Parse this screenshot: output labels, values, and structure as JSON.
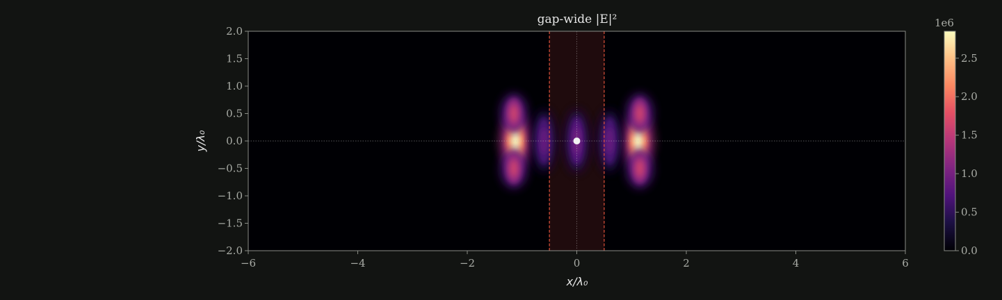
{
  "chart_data": {
    "type": "heatmap",
    "title": "gap-wide |E|²",
    "xlabel": "x/λ₀",
    "ylabel": "y/λ₀",
    "xlim": [
      -6,
      6
    ],
    "ylim": [
      -2,
      2
    ],
    "x_ticks": [
      {
        "value": -6,
        "label": "−6"
      },
      {
        "value": -4,
        "label": "−4"
      },
      {
        "value": -2,
        "label": "−2"
      },
      {
        "value": 0,
        "label": "0"
      },
      {
        "value": 2,
        "label": "2"
      },
      {
        "value": 4,
        "label": "4"
      },
      {
        "value": 6,
        "label": "6"
      }
    ],
    "y_ticks": [
      {
        "value": 2.0,
        "label": "2.0"
      },
      {
        "value": 1.5,
        "label": "1.5"
      },
      {
        "value": 1.0,
        "label": "1.0"
      },
      {
        "value": 0.5,
        "label": "0.5"
      },
      {
        "value": 0.0,
        "label": "0.0"
      },
      {
        "value": -0.5,
        "label": "−0.5"
      },
      {
        "value": -1.0,
        "label": "−1.0"
      },
      {
        "value": -1.5,
        "label": "−1.5"
      },
      {
        "value": -2.0,
        "label": "−2.0"
      }
    ],
    "gap_region": {
      "x_min": -0.5,
      "x_max": 0.5
    },
    "source_point": {
      "x": 0,
      "y": 0
    },
    "colormap": "magma",
    "colorbar": {
      "min": 0,
      "max": 2850000,
      "multiplier_label": "1e6",
      "ticks": [
        {
          "value": 0.0,
          "label": "0.0"
        },
        {
          "value": 0.5,
          "label": "0.5"
        },
        {
          "value": 1.0,
          "label": "1.0"
        },
        {
          "value": 1.5,
          "label": "1.5"
        },
        {
          "value": 2.0,
          "label": "2.0"
        },
        {
          "value": 2.5,
          "label": "2.5"
        }
      ]
    },
    "hotspots": [
      {
        "x": -1.12,
        "y": 0.0,
        "intensity": 2.85
      },
      {
        "x": 1.12,
        "y": 0.0,
        "intensity": 2.85
      },
      {
        "x": -1.15,
        "y": 0.5,
        "intensity": 1.6
      },
      {
        "x": 1.15,
        "y": 0.5,
        "intensity": 1.6
      },
      {
        "x": -1.15,
        "y": -0.5,
        "intensity": 1.6
      },
      {
        "x": 1.15,
        "y": -0.5,
        "intensity": 1.6
      },
      {
        "x": -0.6,
        "y": 0.0,
        "intensity": 0.9
      },
      {
        "x": 0.6,
        "y": 0.0,
        "intensity": 0.9
      },
      {
        "x": 0.0,
        "y": 0.0,
        "intensity": 1.0
      }
    ],
    "grid": false
  },
  "colors": {
    "background": "#121412",
    "plot_background": "#000004",
    "gap_fill": "#2a0f10",
    "gap_edge": "#e0523a",
    "spine": "#8a8d86",
    "tick_text": "#a9aca6",
    "title_text": "#e6e6e6"
  }
}
